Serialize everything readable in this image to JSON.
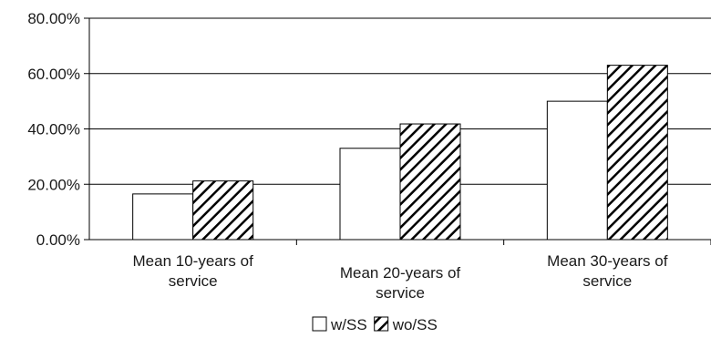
{
  "chart_data": {
    "type": "bar",
    "categories": [
      [
        "Mean 10-years of",
        "service"
      ],
      [
        "Mean 20-years of",
        "service"
      ],
      [
        "Mean 30-years of",
        "service"
      ]
    ],
    "series": [
      {
        "name": "w/SS",
        "values": [
          16.5,
          33.0,
          50.0
        ],
        "fill": "#ffffff",
        "pattern": "none"
      },
      {
        "name": "wo/SS",
        "values": [
          21.2,
          41.8,
          63.0
        ],
        "fill": "#ffffff",
        "pattern": "diagonal-hatch"
      }
    ],
    "ylim": [
      0,
      80
    ],
    "yticks": [
      0,
      20,
      40,
      60,
      80
    ],
    "ytick_labels": [
      "0.00%",
      "20.00%",
      "40.00%",
      "60.00%",
      "80.00%"
    ],
    "grid": true,
    "legend": "bottom-center",
    "colors": {
      "axis": "#000000",
      "bar_stroke": "#000000",
      "hatch": "#000000"
    }
  }
}
